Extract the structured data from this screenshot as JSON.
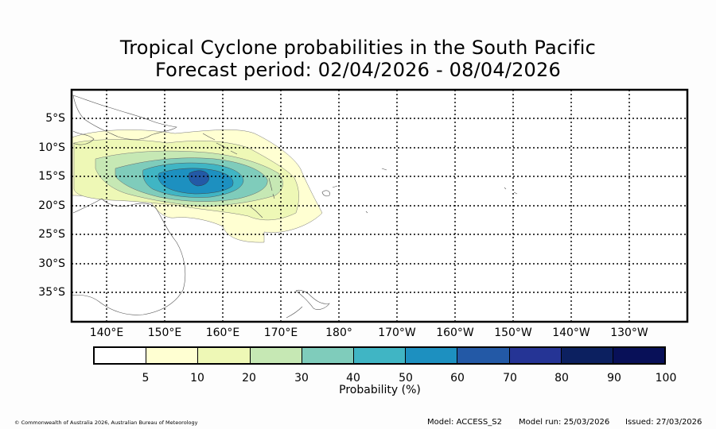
{
  "title": {
    "line1": "Tropical Cyclone probabilities in the South Pacific",
    "line2": "Forecast period: 02/04/2026 - 08/04/2026"
  },
  "map": {
    "lat_labels": [
      "5°S",
      "10°S",
      "15°S",
      "20°S",
      "25°S",
      "30°S",
      "35°S"
    ],
    "lon_labels": [
      "140°E",
      "150°E",
      "160°E",
      "170°E",
      "180°",
      "170°W",
      "160°W",
      "150°W",
      "140°W",
      "130°W"
    ],
    "grid_style": "dotted",
    "land_outline_color": "#555555",
    "max_probability_center": {
      "lon_e": 155,
      "lat_s": 15
    }
  },
  "colorbar": {
    "levels": [
      "5",
      "10",
      "20",
      "30",
      "40",
      "50",
      "60",
      "70",
      "80",
      "90",
      "100"
    ],
    "colors": [
      "#ffffff",
      "#ffffd2",
      "#eef8b6",
      "#c6e8b4",
      "#7fccbb",
      "#40b5c4",
      "#1d90c0",
      "#2359a6",
      "#253495",
      "#0c2060",
      "#081058"
    ],
    "label": "Probability (%)"
  },
  "footer": {
    "copyright": "© Commonwealth of Australia 2026, Australian Bureau of Meteorology",
    "model": "Model: ACCESS_S2",
    "model_run": "Model run: 25/03/2026",
    "issued": "Issued: 27/03/2026"
  }
}
